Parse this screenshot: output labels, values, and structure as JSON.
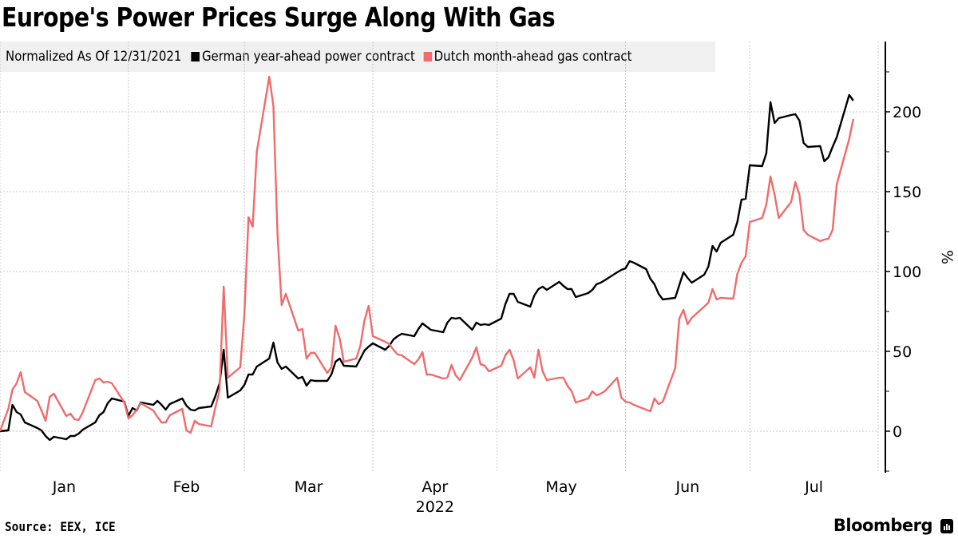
{
  "title": "Europe's Power Prices Surge Along With Gas",
  "legend": {
    "note": "Normalized As Of 12/31/2021",
    "items": [
      {
        "label": "German year-ahead power contract",
        "color": "#000000"
      },
      {
        "label": "Dutch month-ahead gas contract",
        "color": "#f06b6b"
      }
    ]
  },
  "footer": {
    "source": "Source: EEX, ICE",
    "brand": "Bloomberg"
  },
  "chart_data": {
    "type": "line",
    "title": "Europe's Power Prices Surge Along With Gas",
    "subtitle": "Normalized As Of 12/31/2021",
    "xlabel": "2022",
    "ylabel": "%",
    "x_start_date": "2021-12-31",
    "x_frequency": "business-day",
    "x_range": [
      "2022-01-01",
      "2022-08-01"
    ],
    "x_ticks": [
      {
        "label": "Jan",
        "date": "2022-01-01"
      },
      {
        "label": "Feb",
        "date": "2022-02-01"
      },
      {
        "label": "Mar",
        "date": "2022-03-01"
      },
      {
        "label": "Apr",
        "date": "2022-04-01"
      },
      {
        "label": "May",
        "date": "2022-05-01"
      },
      {
        "label": "Jun",
        "date": "2022-06-01"
      },
      {
        "label": "Jul",
        "date": "2022-07-01"
      },
      {
        "label": "",
        "date": "2022-08-01"
      }
    ],
    "x_year_label": "2022",
    "ylim": [
      -26,
      244
    ],
    "y_ticks": [
      0,
      50,
      100,
      150,
      200
    ],
    "y_minor_ticks": [
      -25,
      25,
      75,
      125,
      175,
      225
    ],
    "y_axis_position": "right",
    "grid": true,
    "legend_position": "top-left",
    "series": [
      {
        "name": "German year-ahead power contract",
        "color": "#000000",
        "values": [
          0,
          0.5,
          16.5,
          12,
          10.5,
          5.5,
          2,
          0.5,
          -3,
          -5.5,
          -3.5,
          -5,
          -3,
          -3,
          -1.5,
          1,
          5.5,
          10,
          12,
          17.5,
          20.5,
          18.5,
          9.5,
          14.5,
          13,
          18,
          16.5,
          19,
          16.5,
          13.5,
          17,
          20.5,
          16,
          13.5,
          13,
          14.5,
          15.5,
          22,
          30,
          51,
          21,
          25.5,
          29,
          35.5,
          35.5,
          40.5,
          45.5,
          55.5,
          43,
          39,
          40.5,
          33,
          34,
          28.5,
          32,
          31.5,
          31.5,
          35.5,
          43.5,
          45.5,
          41,
          40.5,
          45.5,
          50.5,
          53,
          55,
          51,
          53.5,
          57.5,
          59.5,
          61,
          59.5,
          64,
          67.5,
          65.5,
          63.5,
          62,
          68,
          71,
          70.5,
          71,
          63.5,
          68,
          66.5,
          67,
          66.5,
          70.5,
          79.5,
          86,
          86,
          81,
          78,
          85,
          89,
          90.5,
          88.5,
          93.5,
          91,
          89,
          89,
          84,
          86.5,
          88.5,
          92,
          93,
          94.5,
          99.5,
          101,
          102,
          106.5,
          105.5,
          101.5,
          95.5,
          92,
          86,
          82.5,
          83.5,
          91.5,
          99.5,
          96,
          93,
          98,
          103,
          116,
          112.5,
          118,
          123,
          131,
          145,
          145.5,
          166.5,
          166,
          174,
          206,
          193,
          196,
          198,
          198.5,
          194.5,
          180.5,
          178,
          178.5,
          169,
          171.5,
          178,
          184,
          210.5,
          207
        ]
      },
      {
        "name": "Dutch month-ahead gas contract",
        "color": "#f06b6b",
        "values": [
          0,
          14,
          26,
          30,
          37,
          24.5,
          19,
          13,
          6.5,
          21.5,
          23.5,
          9.5,
          11,
          7.5,
          7,
          12,
          32,
          33,
          30.5,
          31,
          30,
          18,
          8,
          10,
          13.5,
          17.5,
          13,
          9,
          5.5,
          5.5,
          10,
          14,
          0.5,
          -1,
          6.5,
          4.5,
          3,
          15,
          25.5,
          90.5,
          33.5,
          40,
          73,
          134,
          128,
          175,
          222,
          203.5,
          123,
          79,
          86,
          63,
          64,
          45.5,
          49,
          49,
          36.5,
          40,
          66,
          58,
          43.5,
          45.5,
          53.5,
          69.5,
          78.5,
          59.5,
          56,
          54.5,
          51,
          48,
          47.5,
          42,
          45,
          49.5,
          35.5,
          35.5,
          33,
          33.5,
          41.5,
          35,
          32,
          46,
          52.5,
          42,
          41,
          37.5,
          41,
          47.5,
          51,
          44.5,
          33,
          40,
          33.5,
          51,
          37.5,
          32,
          33.5,
          33.5,
          28.5,
          25,
          18,
          20.5,
          25,
          22.5,
          23.5,
          25,
          33.5,
          21,
          18.5,
          18,
          16.5,
          13.5,
          12.5,
          20.5,
          17,
          18.5,
          39.5,
          70.5,
          76,
          67,
          71,
          78,
          80.5,
          89,
          82.5,
          83.5,
          83,
          98.5,
          105.5,
          109.5,
          131,
          133.5,
          142,
          159.5,
          148,
          133.5,
          143.5,
          156,
          148,
          126,
          123,
          119,
          120,
          120.5,
          126,
          154.5,
          183,
          195.5
        ]
      }
    ]
  }
}
